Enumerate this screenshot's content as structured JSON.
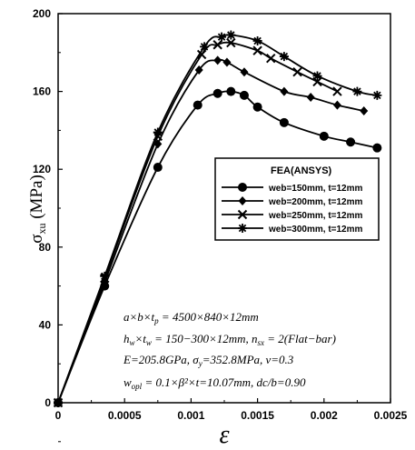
{
  "chart_data": {
    "type": "line",
    "xlabel": "ε",
    "ylabel": "σ_xu (MPa)",
    "xlim": [
      0,
      0.0025
    ],
    "ylim": [
      0,
      200
    ],
    "xticks": [
      "0",
      "0.0005",
      "0.001",
      "0.0015",
      "0.002",
      "0.0025"
    ],
    "xtick_values": [
      0,
      0.0005,
      0.001,
      0.0015,
      0.002,
      0.0025
    ],
    "yticks": [
      "0",
      "40",
      "80",
      "120",
      "160",
      "200"
    ],
    "ytick_values": [
      0,
      40,
      80,
      120,
      160,
      200
    ],
    "grid": false,
    "legend": {
      "title": "FEA(ANSYS)",
      "placement": "center-right",
      "entries": [
        "web=150mm, t=12mm",
        "web=200mm, t=12mm",
        "web=250mm, t=12mm",
        "web=300mm, t=12mm"
      ]
    },
    "series": [
      {
        "name": "web=150mm, t=12mm",
        "marker": "circle",
        "x": [
          0,
          0.00035,
          0.00075,
          0.00105,
          0.0012,
          0.0013,
          0.0014,
          0.0015,
          0.0017,
          0.002,
          0.0022,
          0.0024
        ],
        "y": [
          0,
          60,
          121,
          153,
          159,
          160,
          158,
          152,
          144,
          137,
          134,
          131
        ]
      },
      {
        "name": "web=200mm, t=12mm",
        "marker": "diamond",
        "x": [
          0,
          0.00035,
          0.00075,
          0.00106,
          0.0012,
          0.00127,
          0.0014,
          0.0017,
          0.0019,
          0.0021,
          0.0023
        ],
        "y": [
          0,
          62,
          133,
          171,
          176,
          175,
          170,
          160,
          157,
          153,
          150
        ]
      },
      {
        "name": "web=250mm, t=12mm",
        "marker": "x",
        "x": [
          0,
          0.00035,
          0.00075,
          0.00108,
          0.0012,
          0.0013,
          0.0015,
          0.0016,
          0.0018,
          0.00195,
          0.0021
        ],
        "y": [
          0,
          64,
          137,
          179,
          184,
          185,
          181,
          177,
          170,
          165,
          160
        ]
      },
      {
        "name": "web=300mm, t=12mm",
        "marker": "star",
        "x": [
          0,
          0.00035,
          0.00075,
          0.0011,
          0.00123,
          0.0013,
          0.0015,
          0.0017,
          0.00195,
          0.00225,
          0.0024
        ],
        "y": [
          0,
          65,
          139,
          183,
          188,
          189,
          186,
          178,
          168,
          160,
          158
        ]
      }
    ],
    "annotations": [
      "a×b×t_p = 4500×840×12mm",
      "h_w×t_w = 150−300×12mm, n_sx = 2(Flat−bar)",
      "E=205.8GPa, σ_y=352.8MPa, ν=0.3",
      "w_opl = 0.1×β²×t=10.07mm, dc/b=0.90"
    ]
  }
}
